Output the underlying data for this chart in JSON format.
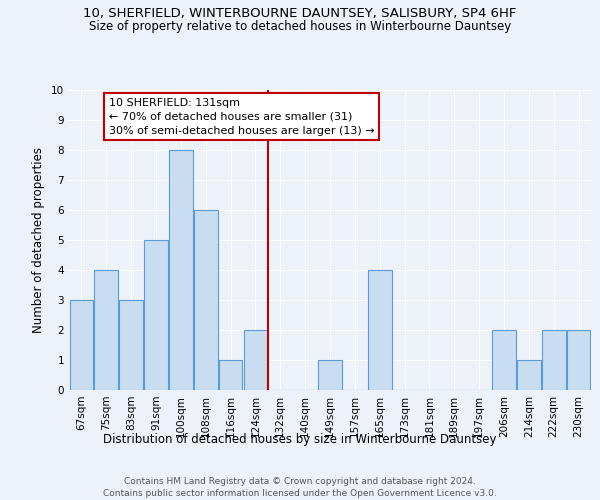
{
  "title_line1": "10, SHERFIELD, WINTERBOURNE DAUNTSEY, SALISBURY, SP4 6HF",
  "title_line2": "Size of property relative to detached houses in Winterbourne Dauntsey",
  "xlabel": "Distribution of detached houses by size in Winterbourne Dauntsey",
  "ylabel": "Number of detached properties",
  "footnote": "Contains HM Land Registry data © Crown copyright and database right 2024.\nContains public sector information licensed under the Open Government Licence v3.0.",
  "bin_labels": [
    "67sqm",
    "75sqm",
    "83sqm",
    "91sqm",
    "100sqm",
    "108sqm",
    "116sqm",
    "124sqm",
    "132sqm",
    "140sqm",
    "149sqm",
    "157sqm",
    "165sqm",
    "173sqm",
    "181sqm",
    "189sqm",
    "197sqm",
    "206sqm",
    "214sqm",
    "222sqm",
    "230sqm"
  ],
  "bar_heights": [
    3,
    4,
    3,
    5,
    8,
    6,
    1,
    2,
    0,
    0,
    1,
    0,
    4,
    0,
    0,
    0,
    0,
    2,
    1,
    2,
    2
  ],
  "bar_color": "#c9ddf0",
  "bar_edge_color": "#5b9bd5",
  "vline_color": "#c00000",
  "annotation_title": "10 SHERFIELD: 131sqm",
  "annotation_line1": "← 70% of detached houses are smaller (31)",
  "annotation_line2": "30% of semi-detached houses are larger (13) →",
  "annotation_box_edge": "#c00000",
  "ylim": [
    0,
    10
  ],
  "yticks": [
    0,
    1,
    2,
    3,
    4,
    5,
    6,
    7,
    8,
    9,
    10
  ],
  "background_color": "#edf2f9",
  "grid_color": "#ffffff",
  "title_fontsize": 9.5,
  "subtitle_fontsize": 8.5,
  "axis_label_fontsize": 8.5,
  "tick_fontsize": 7.5,
  "annotation_fontsize": 8.0,
  "footnote_fontsize": 6.5
}
